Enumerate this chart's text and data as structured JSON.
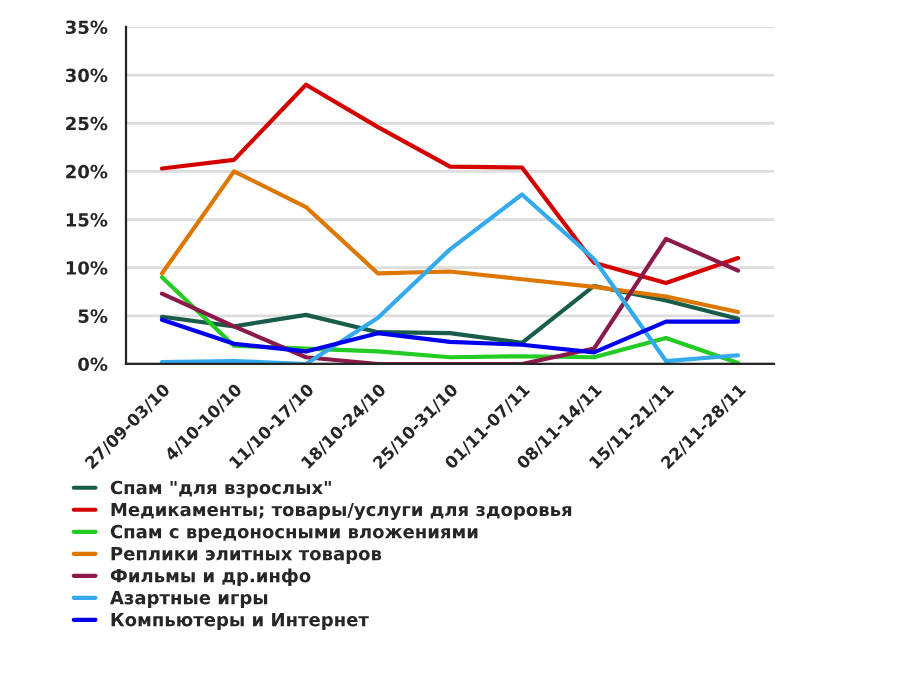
{
  "chart_data": {
    "type": "line",
    "categories": [
      "27/09-03/10",
      "4/10-10/10",
      "11/10-17/10",
      "18/10-24/10",
      "25/10-31/10",
      "01/11-07/11",
      "08/11-14/11",
      "15/11-21/11",
      "22/11-28/11"
    ],
    "series": [
      {
        "name": "Спам \"для взрослых\"",
        "color": "#1a5c4a",
        "values": [
          4.9,
          3.9,
          5.1,
          3.3,
          3.2,
          2.2,
          8.1,
          6.6,
          4.7
        ]
      },
      {
        "name": "Медикаменты; товары/услуги для здоровья",
        "color": "#d40000",
        "values": [
          20.3,
          21.2,
          29.0,
          24.6,
          20.5,
          20.4,
          10.5,
          8.4,
          11.0
        ]
      },
      {
        "name": "Спам с вредоносными вложениями",
        "color": "#22cc22",
        "values": [
          9.0,
          1.9,
          1.6,
          1.3,
          0.7,
          0.8,
          0.7,
          2.7,
          0.1
        ]
      },
      {
        "name": "Реплики элитных товаров",
        "color": "#dd7700",
        "values": [
          9.4,
          20.0,
          16.3,
          9.4,
          9.6,
          8.8,
          8.0,
          7.0,
          5.4
        ]
      },
      {
        "name": "Фильмы и др.инфо",
        "color": "#8b1a4a",
        "values": [
          7.3,
          3.9,
          0.7,
          0.0,
          0.0,
          0.0,
          1.6,
          13.0,
          9.7
        ]
      },
      {
        "name": "Азартные игры",
        "color": "#33aaee",
        "values": [
          0.2,
          0.3,
          0.0,
          4.8,
          11.9,
          17.6,
          10.9,
          0.3,
          0.9
        ]
      },
      {
        "name": "Компьютеры и Интернет",
        "color": "#0000ee",
        "values": [
          4.6,
          2.1,
          1.3,
          3.2,
          2.3,
          2.0,
          1.2,
          4.4,
          4.4
        ]
      }
    ],
    "ylim": [
      0,
      35
    ],
    "yticks": [
      {
        "value": 0,
        "label": "0%"
      },
      {
        "value": 5,
        "label": "5%"
      },
      {
        "value": 10,
        "label": "10%"
      },
      {
        "value": 15,
        "label": "15%"
      },
      {
        "value": 20,
        "label": "20%"
      },
      {
        "value": 25,
        "label": "25%"
      },
      {
        "value": 30,
        "label": "30%"
      },
      {
        "value": 35,
        "label": "35%"
      }
    ],
    "grid": "y",
    "legend": "bottom",
    "marker": "none",
    "line_style": "solid"
  }
}
